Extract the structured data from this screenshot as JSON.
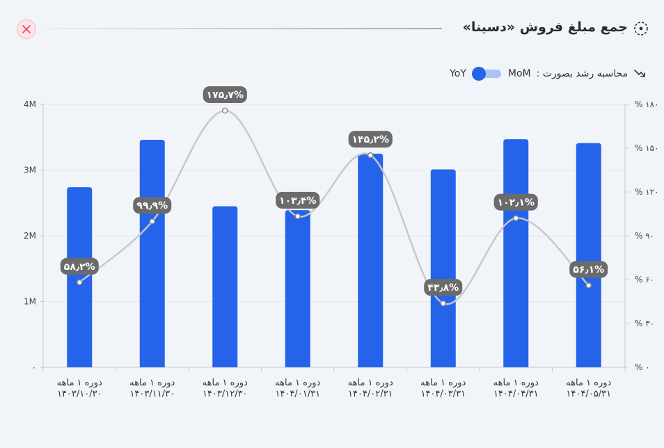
{
  "header": {
    "title": "جمع مبلغ فروش «دسینا»",
    "close_icon": "close-icon",
    "title_icon": "settings-dots-icon"
  },
  "controls": {
    "growth_label": "محاسبه رشد بصورت :",
    "option_mom": "MoM",
    "option_yoy": "YoY",
    "selected": "YoY",
    "growth_icon": "trending-icon"
  },
  "colors": {
    "bar": "#2563eb",
    "line": "#c8c8c8",
    "label_bg": "#6b6b6b",
    "close": "#e0455f"
  },
  "chart_data": {
    "type": "bar",
    "categories": [
      "دوره ۱ ماهه ۱۴۰۳/۱۰/۳۰",
      "دوره ۱ ماهه ۱۴۰۳/۱۱/۳۰",
      "دوره ۱ ماهه ۱۴۰۳/۱۲/۳۰",
      "دوره ۱ ماهه ۱۴۰۴/۰۱/۳۱",
      "دوره ۱ ماهه ۱۴۰۴/۰۲/۳۱",
      "دوره ۱ ماهه ۱۴۰۴/۰۳/۳۱",
      "دوره ۱ ماهه ۱۴۰۴/۰۴/۳۱",
      "دوره ۱ ماهه ۱۴۰۴/۰۵/۳۱"
    ],
    "category_lines": [
      [
        "دوره ۱ ماهه",
        "۱۴۰۳/۱۰/۳۰"
      ],
      [
        "دوره ۱ ماهه",
        "۱۴۰۳/۱۱/۳۰"
      ],
      [
        "دوره ۱ ماهه",
        "۱۴۰۳/۱۲/۳۰"
      ],
      [
        "دوره ۱ ماهه",
        "۱۴۰۴/۰۱/۳۱"
      ],
      [
        "دوره ۱ ماهه",
        "۱۴۰۴/۰۲/۳۱"
      ],
      [
        "دوره ۱ ماهه",
        "۱۴۰۴/۰۳/۳۱"
      ],
      [
        "دوره ۱ ماهه",
        "۱۴۰۴/۰۴/۳۱"
      ],
      [
        "دوره ۱ ماهه",
        "۱۴۰۴/۰۵/۳۱"
      ]
    ],
    "series": [
      {
        "type": "bar",
        "axis": "left",
        "values": [
          2.74,
          3.46,
          2.45,
          2.39,
          3.25,
          3.01,
          3.47,
          3.41
        ]
      },
      {
        "type": "line",
        "axis": "right",
        "values": [
          58.2,
          99.9,
          175.7,
          103.4,
          145.2,
          43.8,
          102.1,
          56.1
        ],
        "labels": [
          "۵۸٫۲%",
          "۹۹٫۹%",
          "۱۷۵٫۷%",
          "۱۰۳٫۴%",
          "۱۴۵٫۲%",
          "۴۳٫۸%",
          "۱۰۲٫۱%",
          "۵۶٫۱%"
        ]
      }
    ],
    "ylim": [
      0,
      4
    ],
    "yticks": [
      0,
      1,
      2,
      3,
      4
    ],
    "ytick_labels": [
      "۰",
      "1M",
      "2M",
      "3M",
      "4M"
    ],
    "y2lim": [
      0,
      180
    ],
    "y2ticks": [
      0,
      30,
      60,
      90,
      120,
      150,
      180
    ],
    "y2tick_labels": [
      "% ۰",
      "% ۳۰",
      "% ۶۰",
      "% ۹۰",
      "% ۱۲۰",
      "% ۱۵۰",
      "% ۱۸۰"
    ],
    "grid": true
  }
}
